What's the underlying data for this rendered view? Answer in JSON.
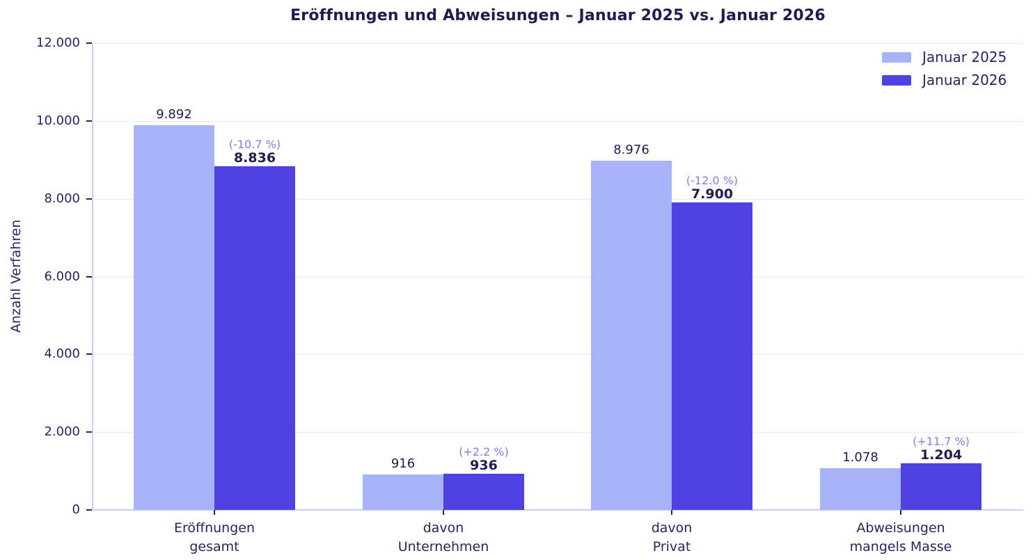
{
  "chart_data": {
    "type": "bar",
    "title": "Eröffnungen und Abweisungen – Januar 2025 vs. Januar 2026",
    "ylabel": "Anzahl Verfahren",
    "xlabel": "",
    "ylim": [
      0,
      12000
    ],
    "grid": true,
    "legend_position": "upper right",
    "yticks": {
      "values": [
        0,
        2000,
        4000,
        6000,
        8000,
        10000,
        12000
      ],
      "labels": [
        "0",
        "2.000",
        "4.000",
        "6.000",
        "8.000",
        "10.000",
        "12.000"
      ]
    },
    "categories": [
      [
        "Eröffnungen",
        "gesamt"
      ],
      [
        "davon",
        "Unternehmen"
      ],
      [
        "davon",
        "Privat"
      ],
      [
        "Abweisungen",
        "mangels Masse"
      ]
    ],
    "series": [
      {
        "name": "Januar 2025",
        "color": "#a6b3f9",
        "values": [
          9892,
          916,
          8976,
          1078
        ],
        "value_labels": [
          "9.892",
          "916",
          "8.976",
          "1.078"
        ]
      },
      {
        "name": "Januar 2026",
        "color": "#4e42e2",
        "values": [
          8836,
          936,
          7900,
          1204
        ],
        "value_labels": [
          "8.836",
          "936",
          "7.900",
          "1.204"
        ],
        "pct_change_labels": [
          "(-10.7 %)",
          "(+2.2 %)",
          "(-12.0 %)",
          "(+11.7 %)"
        ]
      }
    ],
    "colors": {
      "title_text": "#221c4e",
      "axis_text": "#29245e",
      "pct_label": "#7c7ff0",
      "gridline": "#e4e9fa",
      "axis_line": "#c9d2f6",
      "background": "#ffffff"
    }
  }
}
